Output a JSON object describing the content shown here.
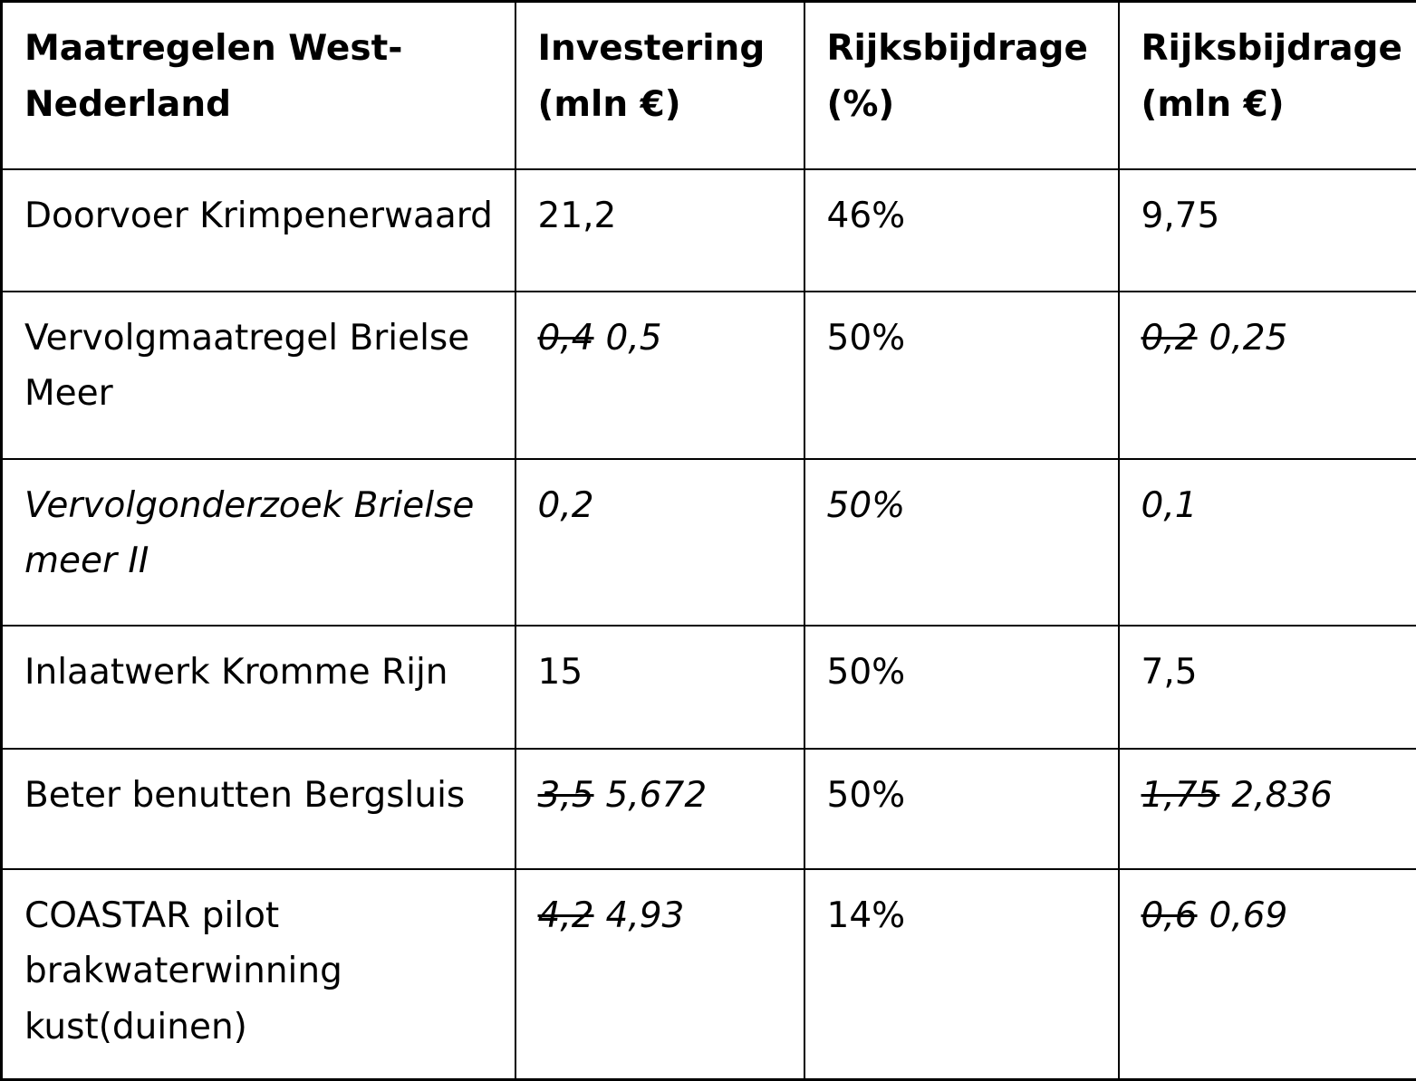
{
  "table": {
    "columns": [
      "Maatregelen West-Nederland",
      "Investering (mln €)",
      "Rijksbijdrage (%)",
      "Rijksbijdrage (mln €)"
    ],
    "rows": [
      {
        "name": "Doorvoer Krimpenerwaard",
        "investering": "21,2",
        "rijksbijdrage_pct": "46%",
        "rijksbijdrage_mln": "9,75"
      },
      {
        "name": "Vervolgmaatregel Brielse Meer",
        "investering_old": "0,4",
        "investering": "0,5",
        "rijksbijdrage_pct": "50%",
        "rijksbijdrage_mln_old": "0,2",
        "rijksbijdrage_mln": "0,25"
      },
      {
        "name": "Vervolgonderzoek Brielse meer II",
        "investering": "0,2",
        "rijksbijdrage_pct": "50%",
        "rijksbijdrage_mln": "0,1"
      },
      {
        "name": "Inlaatwerk Kromme Rijn",
        "investering": "15",
        "rijksbijdrage_pct": "50%",
        "rijksbijdrage_mln": "7,5"
      },
      {
        "name": "Beter benutten Bergsluis",
        "investering_old": "3,5",
        "investering": "5,672",
        "rijksbijdrage_pct": "50%",
        "rijksbijdrage_mln_old": "1,75",
        "rijksbijdrage_mln": "2,836"
      },
      {
        "name": "COASTAR pilot brakwaterwinning kust(duinen)",
        "investering_old": "4,2",
        "investering": "4,93",
        "rijksbijdrage_pct": "14%",
        "rijksbijdrage_mln_old": "0,6",
        "rijksbijdrage_mln": "0,69"
      }
    ]
  }
}
